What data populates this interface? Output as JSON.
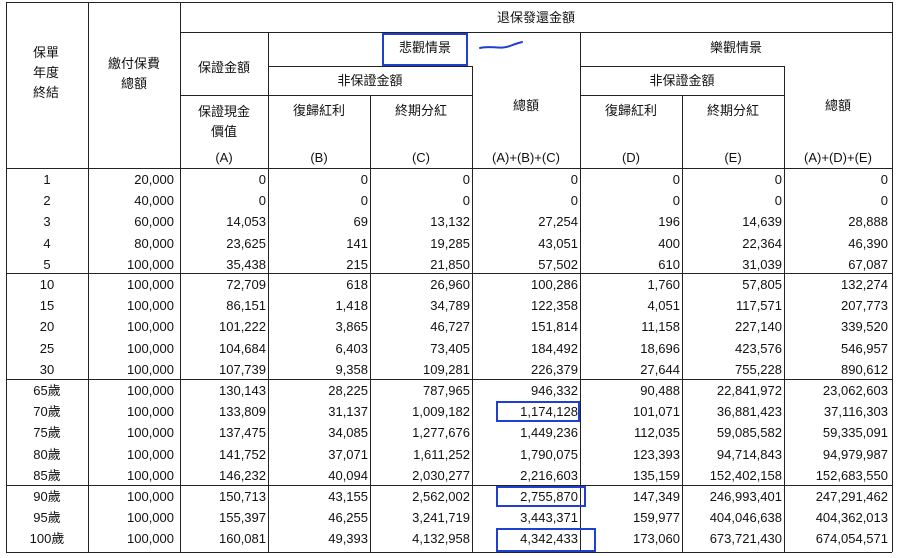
{
  "header": {
    "policy_year_end": "保單\n年度\n終結",
    "total_premium": "繳付保費\n總額",
    "surrender_amount": "退保發還金額",
    "guaranteed_amount": "保證金額",
    "pessimistic": "悲觀情景",
    "optimistic": "樂觀情景",
    "non_guaranteed_pess": "非保證金額",
    "non_guaranteed_opt": "非保證金額",
    "cash_value": "保證現金\n價值",
    "reversionary_bonus_pess": "復歸紅利",
    "terminal_dividend_pess": "終期分紅",
    "total_pess": "總額",
    "reversionary_bonus_opt": "復歸紅利",
    "terminal_dividend_opt": "終期分紅",
    "total_opt": "總額",
    "code_a": "(A)",
    "code_b": "(B)",
    "code_c": "(C)",
    "code_abc": "(A)+(B)+(C)",
    "code_d": "(D)",
    "code_e": "(E)",
    "code_ade": "(A)+(D)+(E)"
  },
  "rows": [
    [
      "1",
      "20,000",
      "0",
      "0",
      "0",
      "0",
      "0",
      "0",
      "0"
    ],
    [
      "2",
      "40,000",
      "0",
      "0",
      "0",
      "0",
      "0",
      "0",
      "0"
    ],
    [
      "3",
      "60,000",
      "14,053",
      "69",
      "13,132",
      "27,254",
      "196",
      "14,639",
      "28,888"
    ],
    [
      "4",
      "80,000",
      "23,625",
      "141",
      "19,285",
      "43,051",
      "400",
      "22,364",
      "46,390"
    ],
    [
      "5",
      "100,000",
      "35,438",
      "215",
      "21,850",
      "57,502",
      "610",
      "31,039",
      "67,087"
    ],
    [
      "10",
      "100,000",
      "72,709",
      "618",
      "26,960",
      "100,286",
      "1,760",
      "57,805",
      "132,274"
    ],
    [
      "15",
      "100,000",
      "86,151",
      "1,418",
      "34,789",
      "122,358",
      "4,051",
      "117,571",
      "207,773"
    ],
    [
      "20",
      "100,000",
      "101,222",
      "3,865",
      "46,727",
      "151,814",
      "11,158",
      "227,140",
      "339,520"
    ],
    [
      "25",
      "100,000",
      "104,684",
      "6,403",
      "73,405",
      "184,492",
      "18,696",
      "423,576",
      "546,957"
    ],
    [
      "30",
      "100,000",
      "107,739",
      "9,358",
      "109,281",
      "226,379",
      "27,644",
      "755,228",
      "890,612"
    ],
    [
      "65歲",
      "100,000",
      "130,143",
      "28,225",
      "787,965",
      "946,332",
      "90,488",
      "22,841,972",
      "23,062,603"
    ],
    [
      "70歲",
      "100,000",
      "133,809",
      "31,137",
      "1,009,182",
      "1,174,128",
      "101,071",
      "36,881,423",
      "37,116,303"
    ],
    [
      "75歲",
      "100,000",
      "137,475",
      "34,085",
      "1,277,676",
      "1,449,236",
      "112,035",
      "59,085,582",
      "59,335,091"
    ],
    [
      "80歲",
      "100,000",
      "141,752",
      "37,071",
      "1,611,252",
      "1,790,075",
      "123,393",
      "94,714,843",
      "94,979,987"
    ],
    [
      "85歲",
      "100,000",
      "146,232",
      "40,094",
      "2,030,277",
      "2,216,603",
      "135,159",
      "152,402,158",
      "152,683,550"
    ],
    [
      "90歲",
      "100,000",
      "150,713",
      "43,155",
      "2,562,002",
      "2,755,870",
      "147,349",
      "246,993,401",
      "247,291,462"
    ],
    [
      "95歲",
      "100,000",
      "155,397",
      "46,255",
      "3,241,719",
      "3,443,371",
      "159,977",
      "404,046,638",
      "404,362,013"
    ],
    [
      "100歲",
      "100,000",
      "160,081",
      "49,393",
      "4,132,958",
      "4,342,433",
      "173,060",
      "673,721,430",
      "674,054,571"
    ]
  ],
  "accent_color": "#1f3fd0"
}
